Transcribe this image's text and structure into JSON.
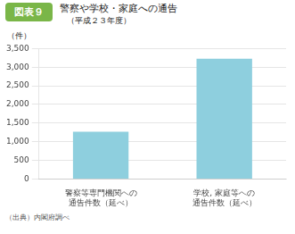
{
  "chart_data": {
    "type": "bar",
    "title": "警察や学校・家庭への通告",
    "subtitle": "（平成２３年度）",
    "annotations": [
      "図表９",
      "（出典）内閣府調べ"
    ],
    "ylabel": "（件）",
    "categories": [
      "警察等専門機関への\n通告件数（延べ）",
      "学校, 家庭等への\n通告件数（延べ）"
    ],
    "values": [
      1270,
      3230
    ],
    "color": "#8ecfde",
    "ylim": [
      0,
      3500
    ],
    "yticks": [
      0,
      500,
      {
        "value": 1000,
        "label": "1,000"
      },
      {
        "value": 1500,
        "label": "1,500"
      },
      {
        "value": 2000,
        "label": "2,000"
      },
      {
        "value": 2500,
        "label": "2,500"
      },
      {
        "value": 3000,
        "label": "3,000"
      },
      {
        "value": 3500,
        "label": "3,500"
      }
    ],
    "grid": true
  }
}
